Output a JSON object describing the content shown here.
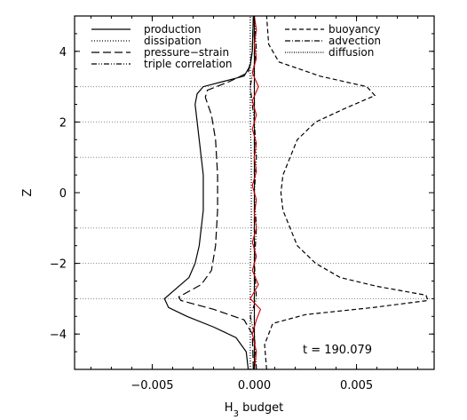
{
  "chart_data": {
    "type": "line",
    "xlabel": "H",
    "xlabel_sub": "3",
    "xlabel_rest": " budget",
    "ylabel": "Z",
    "xlim": [
      -0.0088,
      0.0088
    ],
    "ylim": [
      -5,
      5
    ],
    "x_ticks": [
      -0.005,
      0.0,
      0.005
    ],
    "x_tick_labels": [
      "−0.005",
      "0.000",
      "0.005"
    ],
    "y_ticks": [
      -4,
      -2,
      0,
      2,
      4
    ],
    "y_tick_labels": [
      "−4",
      "−2",
      "0",
      "2",
      "4"
    ],
    "hlines": [
      -3,
      -2,
      -1,
      1,
      2,
      3
    ],
    "vline": 0,
    "annotation": "t = 190.079",
    "legend_left": [
      "production",
      "dissipation",
      "pressure−strain",
      "triple correlation"
    ],
    "legend_right": [
      "buoyancy",
      "advection",
      "diffusion"
    ],
    "series": [
      {
        "name": "production",
        "style": "solid",
        "color": "#000000",
        "points": [
          [
            -0.0003,
            -5.0
          ],
          [
            -0.0004,
            -4.5
          ],
          [
            -0.0009,
            -4.1
          ],
          [
            -0.002,
            -3.8
          ],
          [
            -0.0033,
            -3.5
          ],
          [
            -0.0042,
            -3.25
          ],
          [
            -0.0044,
            -3.0
          ],
          [
            -0.0038,
            -2.7
          ],
          [
            -0.0032,
            -2.4
          ],
          [
            -0.0029,
            -2.0
          ],
          [
            -0.0027,
            -1.5
          ],
          [
            -0.0026,
            -1.0
          ],
          [
            -0.0025,
            -0.5
          ],
          [
            -0.0025,
            0.0
          ],
          [
            -0.0025,
            0.5
          ],
          [
            -0.0026,
            1.0
          ],
          [
            -0.0027,
            1.5
          ],
          [
            -0.0028,
            2.0
          ],
          [
            -0.0029,
            2.5
          ],
          [
            -0.0028,
            2.8
          ],
          [
            -0.0025,
            3.0
          ],
          [
            -0.0015,
            3.15
          ],
          [
            -0.0005,
            3.3
          ],
          [
            -0.0002,
            3.6
          ],
          [
            -0.0001,
            4.0
          ],
          [
            -5e-05,
            5.0
          ]
        ]
      },
      {
        "name": "dissipation",
        "style": "dotted",
        "color": "#000000",
        "points": [
          [
            -0.0002,
            -5.0
          ],
          [
            -0.0002,
            -4.0
          ],
          [
            -0.0002,
            -3.0
          ],
          [
            -0.0002,
            -2.0
          ],
          [
            -0.00015,
            -1.0
          ],
          [
            -0.00015,
            0.0
          ],
          [
            -0.00015,
            1.0
          ],
          [
            -0.0002,
            2.0
          ],
          [
            -0.0002,
            3.0
          ],
          [
            -0.0002,
            4.0
          ],
          [
            -0.0002,
            5.0
          ]
        ]
      },
      {
        "name": "pressure−strain",
        "style": "longdash",
        "color": "#000000",
        "points": [
          [
            -5e-05,
            -5.0
          ],
          [
            -0.0001,
            -4.0
          ],
          [
            -0.0005,
            -3.6
          ],
          [
            -0.002,
            -3.3
          ],
          [
            -0.0036,
            -3.05
          ],
          [
            -0.0037,
            -2.95
          ],
          [
            -0.0026,
            -2.6
          ],
          [
            -0.0021,
            -2.2
          ],
          [
            -0.0019,
            -1.5
          ],
          [
            -0.0018,
            -0.5
          ],
          [
            -0.0018,
            0.5
          ],
          [
            -0.0019,
            1.5
          ],
          [
            -0.0021,
            2.2
          ],
          [
            -0.0024,
            2.7
          ],
          [
            -0.0023,
            2.9
          ],
          [
            -0.0012,
            3.15
          ],
          [
            -0.0003,
            3.4
          ],
          [
            -0.0001,
            4.0
          ],
          [
            -5e-05,
            5.0
          ]
        ]
      },
      {
        "name": "triple correlation",
        "style": "dashdotdot",
        "color": "#000000",
        "points": [
          [
            0.0001,
            -5.0
          ],
          [
            0.0,
            -4.0
          ],
          [
            -0.0002,
            -3.5
          ],
          [
            0.0001,
            -3.0
          ],
          [
            0.0,
            -2.0
          ],
          [
            0.0001,
            -1.0
          ],
          [
            0.0,
            0.0
          ],
          [
            0.0001,
            1.0
          ],
          [
            0.0,
            2.0
          ],
          [
            -0.0002,
            3.0
          ],
          [
            0.0001,
            4.0
          ],
          [
            0.0,
            5.0
          ]
        ]
      },
      {
        "name": "buoyancy",
        "style": "dashed",
        "color": "#000000",
        "points": [
          [
            0.0006,
            -5.0
          ],
          [
            0.0005,
            -4.3
          ],
          [
            0.0009,
            -3.7
          ],
          [
            0.0025,
            -3.45
          ],
          [
            0.0058,
            -3.25
          ],
          [
            0.0085,
            -3.05
          ],
          [
            0.0084,
            -2.9
          ],
          [
            0.006,
            -2.65
          ],
          [
            0.0042,
            -2.4
          ],
          [
            0.003,
            -2.0
          ],
          [
            0.0021,
            -1.5
          ],
          [
            0.0014,
            -0.5
          ],
          [
            0.0013,
            0.0
          ],
          [
            0.0014,
            0.5
          ],
          [
            0.0021,
            1.5
          ],
          [
            0.003,
            2.0
          ],
          [
            0.0045,
            2.4
          ],
          [
            0.0059,
            2.75
          ],
          [
            0.0055,
            3.0
          ],
          [
            0.0032,
            3.3
          ],
          [
            0.0012,
            3.7
          ],
          [
            0.0007,
            4.2
          ],
          [
            0.0006,
            5.0
          ]
        ]
      },
      {
        "name": "advection",
        "style": "dashdot",
        "color": "#000000",
        "points": [
          [
            0.0,
            -5.0
          ],
          [
            0.0,
            -4.0
          ],
          [
            0.0,
            -3.0
          ],
          [
            0.0,
            -2.0
          ],
          [
            0.0,
            -1.0
          ],
          [
            0.0,
            0.0
          ],
          [
            0.0,
            1.0
          ],
          [
            0.0,
            2.0
          ],
          [
            0.0,
            3.0
          ],
          [
            0.0,
            4.0
          ],
          [
            0.0,
            5.0
          ]
        ]
      },
      {
        "name": "diffusion",
        "style": "finedot",
        "color": "#000000",
        "points": [
          [
            0.0,
            -5.0
          ],
          [
            0.0,
            -4.0
          ],
          [
            0.0,
            -3.0
          ],
          [
            0.0,
            -2.0
          ],
          [
            0.0,
            -1.0
          ],
          [
            0.0,
            0.0
          ],
          [
            0.0,
            1.0
          ],
          [
            0.0,
            2.0
          ],
          [
            0.0,
            3.0
          ],
          [
            0.0,
            4.0
          ],
          [
            0.0,
            5.0
          ]
        ]
      },
      {
        "name": "",
        "style": "noisy",
        "color": "#cc0000",
        "points": [
          [
            0.0,
            -5.0
          ],
          [
            0.0001,
            -4.5
          ],
          [
            -0.0001,
            -4.0
          ],
          [
            0.0001,
            -3.6
          ],
          [
            0.0003,
            -3.3
          ],
          [
            -0.0002,
            -3.0
          ],
          [
            0.0002,
            -2.6
          ],
          [
            -0.0001,
            -2.2
          ],
          [
            0.0001,
            -1.8
          ],
          [
            -0.0001,
            -1.4
          ],
          [
            0.0001,
            -1.0
          ],
          [
            0.0,
            -0.6
          ],
          [
            0.0001,
            -0.2
          ],
          [
            -0.0001,
            0.2
          ],
          [
            0.0001,
            0.6
          ],
          [
            0.0,
            1.0
          ],
          [
            0.0001,
            1.4
          ],
          [
            -0.0001,
            1.8
          ],
          [
            0.0001,
            2.2
          ],
          [
            -0.0001,
            2.6
          ],
          [
            0.0002,
            3.0
          ],
          [
            -0.0001,
            3.4
          ],
          [
            0.0001,
            3.8
          ],
          [
            0.0,
            4.2
          ],
          [
            0.0001,
            4.6
          ],
          [
            0.0,
            5.0
          ]
        ]
      }
    ]
  }
}
